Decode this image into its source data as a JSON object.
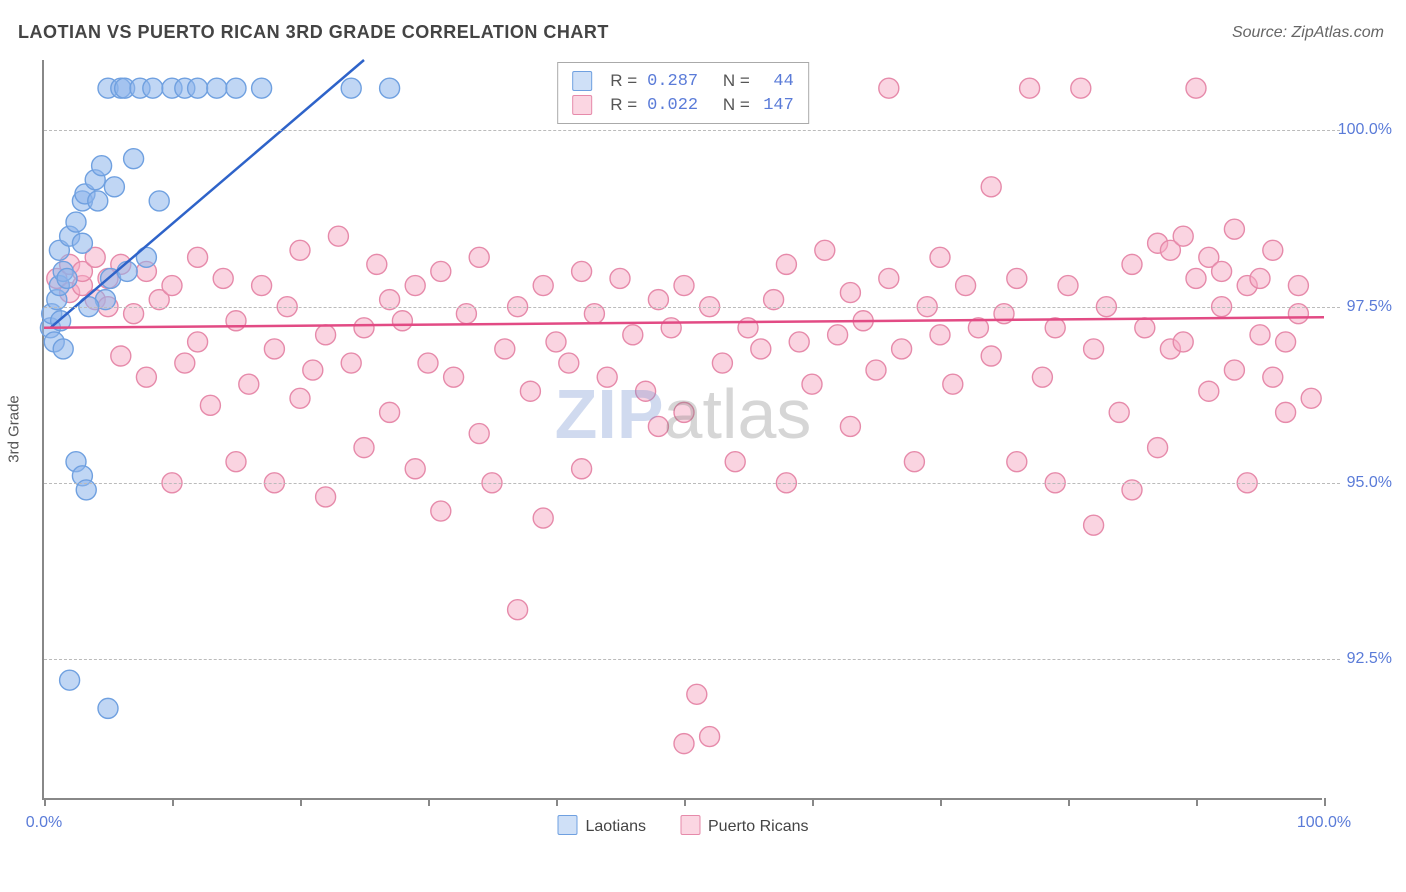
{
  "title": "LAOTIAN VS PUERTO RICAN 3RD GRADE CORRELATION CHART",
  "source": "Source: ZipAtlas.com",
  "ylabel": "3rd Grade",
  "watermark": {
    "part1": "ZIP",
    "part2": "atlas"
  },
  "chart": {
    "type": "scatter",
    "xlim": [
      0,
      100
    ],
    "ylim": [
      90.5,
      101.0
    ],
    "xtick_labels": {
      "min": "0.0%",
      "max": "100.0%"
    },
    "xtick_positions_pct": [
      0,
      10,
      20,
      30,
      40,
      50,
      60,
      70,
      80,
      90,
      100
    ],
    "ygridlines": [
      92.5,
      95.0,
      97.5,
      100.0
    ],
    "ytick_labels": [
      "92.5%",
      "95.0%",
      "97.5%",
      "100.0%"
    ],
    "marker_radius": 10,
    "marker_stroke_width": 1.4,
    "background_color": "#ffffff",
    "grid_color": "#bbbbbb"
  },
  "series": [
    {
      "name": "Laotians",
      "fill": "rgba(140,180,235,0.55)",
      "stroke": "#6fa0e0",
      "swatch_fill": "#cfe0f7",
      "swatch_stroke": "#6fa0e0",
      "R": "0.287",
      "N": "44",
      "trend": {
        "x1": 0.5,
        "y1": 97.2,
        "x2": 25,
        "y2": 101.0,
        "width": 2.5,
        "color": "#2e63c9"
      },
      "points": [
        [
          0.5,
          97.2
        ],
        [
          0.6,
          97.4
        ],
        [
          1.0,
          97.6
        ],
        [
          1.2,
          97.8
        ],
        [
          1.5,
          98.0
        ],
        [
          1.2,
          98.3
        ],
        [
          0.8,
          97.0
        ],
        [
          1.8,
          97.9
        ],
        [
          2.0,
          98.5
        ],
        [
          2.5,
          98.7
        ],
        [
          3.0,
          99.0
        ],
        [
          3.2,
          99.1
        ],
        [
          3.0,
          98.4
        ],
        [
          4.0,
          99.3
        ],
        [
          4.2,
          99.0
        ],
        [
          4.5,
          99.5
        ],
        [
          5.0,
          100.6
        ],
        [
          5.5,
          99.2
        ],
        [
          6.0,
          100.6
        ],
        [
          6.3,
          100.6
        ],
        [
          7.0,
          99.6
        ],
        [
          7.5,
          100.6
        ],
        [
          8.5,
          100.6
        ],
        [
          9.0,
          99.0
        ],
        [
          10.0,
          100.6
        ],
        [
          11.0,
          100.6
        ],
        [
          12.0,
          100.6
        ],
        [
          13.5,
          100.6
        ],
        [
          15.0,
          100.6
        ],
        [
          17.0,
          100.6
        ],
        [
          24.0,
          100.6
        ],
        [
          27.0,
          100.6
        ],
        [
          2.5,
          95.3
        ],
        [
          3.0,
          95.1
        ],
        [
          3.3,
          94.9
        ],
        [
          1.3,
          97.3
        ],
        [
          1.5,
          96.9
        ],
        [
          2.0,
          92.2
        ],
        [
          5.0,
          91.8
        ],
        [
          4.8,
          97.6
        ],
        [
          5.2,
          97.9
        ],
        [
          6.5,
          98.0
        ],
        [
          8.0,
          98.2
        ],
        [
          3.5,
          97.5
        ]
      ]
    },
    {
      "name": "Puerto Ricans",
      "fill": "rgba(245,170,195,0.50)",
      "stroke": "#e68aaa",
      "swatch_fill": "#fbd6e2",
      "swatch_stroke": "#e68aaa",
      "R": "0.022",
      "N": "147",
      "trend": {
        "x1": 0,
        "y1": 97.2,
        "x2": 100,
        "y2": 97.35,
        "width": 2.5,
        "color": "#e24b84"
      },
      "points": [
        [
          1,
          97.9
        ],
        [
          2,
          97.7
        ],
        [
          2,
          98.1
        ],
        [
          3,
          97.8
        ],
        [
          3,
          98.0
        ],
        [
          4,
          97.6
        ],
        [
          4,
          98.2
        ],
        [
          5,
          97.9
        ],
        [
          5,
          97.5
        ],
        [
          6,
          96.8
        ],
        [
          6,
          98.1
        ],
        [
          7,
          97.4
        ],
        [
          8,
          98.0
        ],
        [
          8,
          96.5
        ],
        [
          9,
          97.6
        ],
        [
          10,
          95.0
        ],
        [
          10,
          97.8
        ],
        [
          11,
          96.7
        ],
        [
          12,
          98.2
        ],
        [
          12,
          97.0
        ],
        [
          13,
          96.1
        ],
        [
          14,
          97.9
        ],
        [
          15,
          97.3
        ],
        [
          15,
          95.3
        ],
        [
          16,
          96.4
        ],
        [
          17,
          97.8
        ],
        [
          18,
          96.9
        ],
        [
          18,
          95.0
        ],
        [
          19,
          97.5
        ],
        [
          20,
          96.2
        ],
        [
          20,
          98.3
        ],
        [
          21,
          96.6
        ],
        [
          22,
          97.1
        ],
        [
          22,
          94.8
        ],
        [
          23,
          98.5
        ],
        [
          24,
          96.7
        ],
        [
          25,
          97.2
        ],
        [
          25,
          95.5
        ],
        [
          26,
          98.1
        ],
        [
          27,
          97.6
        ],
        [
          27,
          96.0
        ],
        [
          28,
          97.3
        ],
        [
          29,
          95.2
        ],
        [
          29,
          97.8
        ],
        [
          30,
          96.7
        ],
        [
          31,
          98.0
        ],
        [
          31,
          94.6
        ],
        [
          32,
          96.5
        ],
        [
          33,
          97.4
        ],
        [
          34,
          95.7
        ],
        [
          34,
          98.2
        ],
        [
          35,
          95.0
        ],
        [
          36,
          96.9
        ],
        [
          37,
          93.2
        ],
        [
          37,
          97.5
        ],
        [
          38,
          96.3
        ],
        [
          39,
          94.5
        ],
        [
          39,
          97.8
        ],
        [
          40,
          97.0
        ],
        [
          41,
          96.7
        ],
        [
          42,
          95.2
        ],
        [
          42,
          98.0
        ],
        [
          43,
          97.4
        ],
        [
          44,
          96.5
        ],
        [
          45,
          97.9
        ],
        [
          45,
          100.6
        ],
        [
          46,
          97.1
        ],
        [
          47,
          96.3
        ],
        [
          48,
          97.6
        ],
        [
          48,
          95.8
        ],
        [
          49,
          97.2
        ],
        [
          50,
          97.8
        ],
        [
          50,
          96.0
        ],
        [
          51,
          92.0
        ],
        [
          52,
          97.5
        ],
        [
          52,
          91.4
        ],
        [
          53,
          96.7
        ],
        [
          54,
          95.3
        ],
        [
          55,
          97.2
        ],
        [
          55,
          100.6
        ],
        [
          56,
          96.9
        ],
        [
          57,
          97.6
        ],
        [
          58,
          95.0
        ],
        [
          58,
          98.1
        ],
        [
          59,
          97.0
        ],
        [
          60,
          96.4
        ],
        [
          61,
          98.3
        ],
        [
          62,
          97.1
        ],
        [
          63,
          95.8
        ],
        [
          63,
          97.7
        ],
        [
          64,
          97.3
        ],
        [
          65,
          96.6
        ],
        [
          66,
          97.9
        ],
        [
          66,
          100.6
        ],
        [
          67,
          96.9
        ],
        [
          68,
          95.3
        ],
        [
          69,
          97.5
        ],
        [
          70,
          97.1
        ],
        [
          70,
          98.2
        ],
        [
          71,
          96.4
        ],
        [
          72,
          97.8
        ],
        [
          73,
          97.2
        ],
        [
          74,
          99.2
        ],
        [
          74,
          96.8
        ],
        [
          75,
          97.4
        ],
        [
          76,
          95.3
        ],
        [
          76,
          97.9
        ],
        [
          77,
          100.6
        ],
        [
          78,
          96.5
        ],
        [
          79,
          97.2
        ],
        [
          79,
          95.0
        ],
        [
          80,
          97.8
        ],
        [
          81,
          100.6
        ],
        [
          82,
          96.9
        ],
        [
          82,
          94.4
        ],
        [
          83,
          97.5
        ],
        [
          84,
          96.0
        ],
        [
          85,
          98.1
        ],
        [
          85,
          94.9
        ],
        [
          86,
          97.2
        ],
        [
          87,
          98.4
        ],
        [
          87,
          95.5
        ],
        [
          88,
          96.9
        ],
        [
          88,
          98.3
        ],
        [
          89,
          97.0
        ],
        [
          89,
          98.5
        ],
        [
          90,
          97.9
        ],
        [
          90,
          100.6
        ],
        [
          91,
          98.2
        ],
        [
          91,
          96.3
        ],
        [
          92,
          97.5
        ],
        [
          92,
          98.0
        ],
        [
          93,
          98.6
        ],
        [
          93,
          96.6
        ],
        [
          94,
          97.8
        ],
        [
          94,
          95.0
        ],
        [
          95,
          97.1
        ],
        [
          95,
          97.9
        ],
        [
          96,
          96.5
        ],
        [
          96,
          98.3
        ],
        [
          97,
          97.0
        ],
        [
          97,
          96.0
        ],
        [
          98,
          97.4
        ],
        [
          98,
          97.8
        ],
        [
          99,
          96.2
        ],
        [
          50,
          91.3
        ],
        [
          56,
          100.6
        ]
      ]
    }
  ],
  "legend_top_labels": {
    "R": "R =",
    "N": "N ="
  },
  "legend_bottom": [
    "Laotians",
    "Puerto Ricans"
  ]
}
